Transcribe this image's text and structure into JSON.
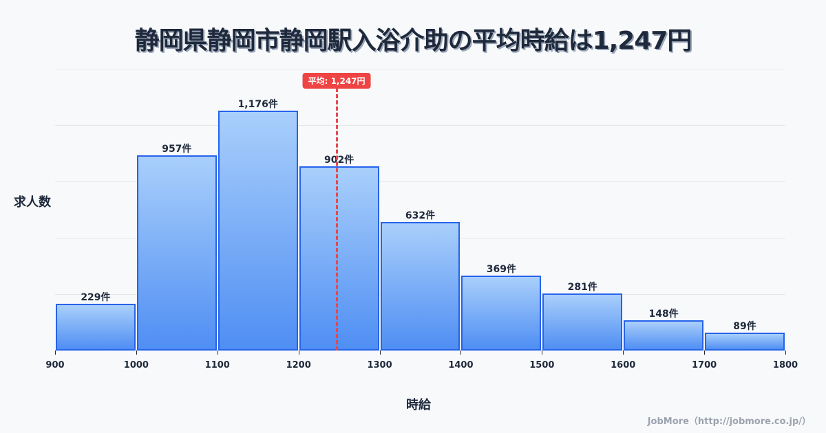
{
  "title": "静岡県静岡市静岡駅入浴介助の平均時給は1,247円",
  "axis": {
    "ylabel": "求人数",
    "xlabel": "時給"
  },
  "footer": "JobMore（http://jobmore.co.jp/）",
  "average": {
    "label": "平均: 1,247円",
    "value": 1247
  },
  "chart_data": {
    "type": "bar",
    "title": "静岡県静岡市静岡駅入浴介助の平均時給は1,247円",
    "xlabel": "時給",
    "ylabel": "求人数",
    "bins": [
      [
        900,
        1000
      ],
      [
        1000,
        1100
      ],
      [
        1100,
        1200
      ],
      [
        1200,
        1300
      ],
      [
        1300,
        1400
      ],
      [
        1400,
        1500
      ],
      [
        1500,
        1600
      ],
      [
        1600,
        1700
      ],
      [
        1700,
        1800
      ]
    ],
    "categories": [
      "900-1000",
      "1000-1100",
      "1100-1200",
      "1200-1300",
      "1300-1400",
      "1400-1500",
      "1500-1600",
      "1600-1700",
      "1700-1800"
    ],
    "values": [
      229,
      957,
      1176,
      902,
      632,
      369,
      281,
      148,
      89
    ],
    "value_labels": [
      "229件",
      "957件",
      "1,176件",
      "902件",
      "632件",
      "369件",
      "281件",
      "148件",
      "89件"
    ],
    "x_ticks": [
      "900",
      "1000",
      "1100",
      "1200",
      "1300",
      "1400",
      "1500",
      "1600",
      "1700",
      "1800"
    ],
    "xlim": [
      900,
      1800
    ],
    "ylim": [
      0,
      1382
    ],
    "grid": true,
    "annotations": [
      {
        "type": "vline",
        "x": 1247,
        "label": "平均: 1,247円",
        "color": "#ef4444"
      }
    ],
    "colors": {
      "bar_fill_top": "#a9cffb",
      "bar_fill_bottom": "#4f8ef3",
      "bar_border": "#2563eb"
    }
  }
}
